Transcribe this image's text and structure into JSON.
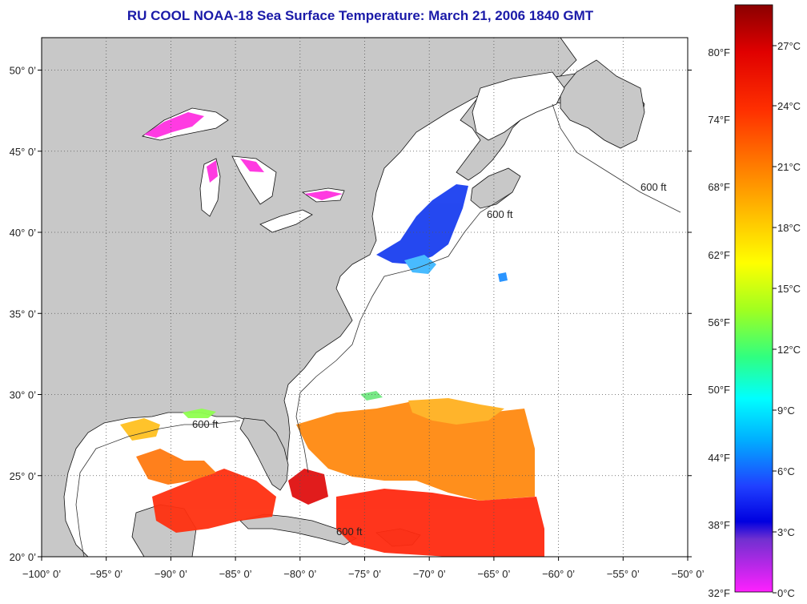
{
  "title": "RU COOL  NOAA-18  Sea Surface Temperature:  March 21, 2006 1840 GMT",
  "map": {
    "lon_range": [
      -100,
      -50
    ],
    "lat_range": [
      20,
      52
    ],
    "lon_ticks": [
      {
        "value": -100,
        "label": "−100° 0’"
      },
      {
        "value": -95,
        "label": "−95° 0’"
      },
      {
        "value": -90,
        "label": "−90° 0’"
      },
      {
        "value": -85,
        "label": "−85° 0’"
      },
      {
        "value": -80,
        "label": "−80° 0’"
      },
      {
        "value": -75,
        "label": "−75° 0’"
      },
      {
        "value": -70,
        "label": "−70° 0’"
      },
      {
        "value": -65,
        "label": "−65° 0’"
      },
      {
        "value": -60,
        "label": "−60° 0’"
      },
      {
        "value": -55,
        "label": "−55° 0’"
      },
      {
        "value": -50,
        "label": "−50° 0’"
      }
    ],
    "lat_ticks": [
      {
        "value": 20,
        "label": "20° 0’"
      },
      {
        "value": 25,
        "label": "25° 0’"
      },
      {
        "value": 30,
        "label": "30° 0’"
      },
      {
        "value": 35,
        "label": "35° 0’"
      },
      {
        "value": 40,
        "label": "40° 0’"
      },
      {
        "value": 45,
        "label": "45° 0’"
      },
      {
        "value": 50,
        "label": "50° 0’"
      }
    ],
    "contour_label": "600 ft",
    "colors": {
      "land": "#c8c8c8",
      "ocean_no_data": "#ffffff",
      "grid": "#555555"
    }
  },
  "colorbar": {
    "fahrenheit_labels": [
      "80°F",
      "74°F",
      "68°F",
      "62°F",
      "56°F",
      "50°F",
      "44°F",
      "38°F",
      "32°F"
    ],
    "celsius_labels": [
      "27°C",
      "24°C",
      "21°C",
      "18°C",
      "15°C",
      "12°C",
      "9°C",
      "6°C",
      "3°C",
      "0°C"
    ],
    "gradient_stops": [
      "#8a0000",
      "#e00000",
      "#ff3000",
      "#ff8000",
      "#ffd000",
      "#ffff00",
      "#a0ff20",
      "#30ff80",
      "#00ffff",
      "#00b0ff",
      "#2040ff",
      "#0000e0",
      "#7030d0",
      "#ff20ff"
    ]
  }
}
